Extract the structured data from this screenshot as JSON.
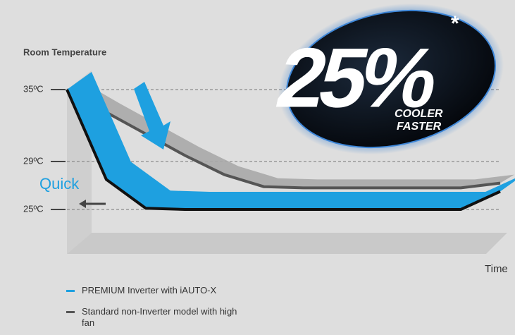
{
  "chart_data": {
    "type": "line",
    "title": "Room Temperature",
    "x_label": "Time",
    "categories": [
      null,
      null,
      null,
      null,
      null,
      null,
      null,
      null,
      null,
      null,
      null,
      null
    ],
    "series": [
      {
        "name": "PREMIUM Inverter with iAUTO-X",
        "color": "#1ea0e0",
        "values": [
          35,
          27.5,
          25.1,
          25,
          25,
          25,
          25,
          25,
          25,
          25,
          25,
          26.5
        ]
      },
      {
        "name": "Standard non-Inverter model with high fan",
        "color": "#555555",
        "values": [
          35,
          33.1,
          31.3,
          29.5,
          27.9,
          26.9,
          26.8,
          26.8,
          26.8,
          26.8,
          26.8,
          27.2
        ]
      }
    ],
    "ylim": [
      25,
      35
    ],
    "yticks": [
      {
        "value": 25,
        "label": "25ºC"
      },
      {
        "value": 29,
        "label": "29ºC"
      },
      {
        "value": 35,
        "label": "35ºC"
      }
    ],
    "grid": true,
    "annotation": "Quick",
    "badge": {
      "label": "25%",
      "mark": "*",
      "lines": [
        "COOLER",
        "FASTER"
      ]
    }
  }
}
